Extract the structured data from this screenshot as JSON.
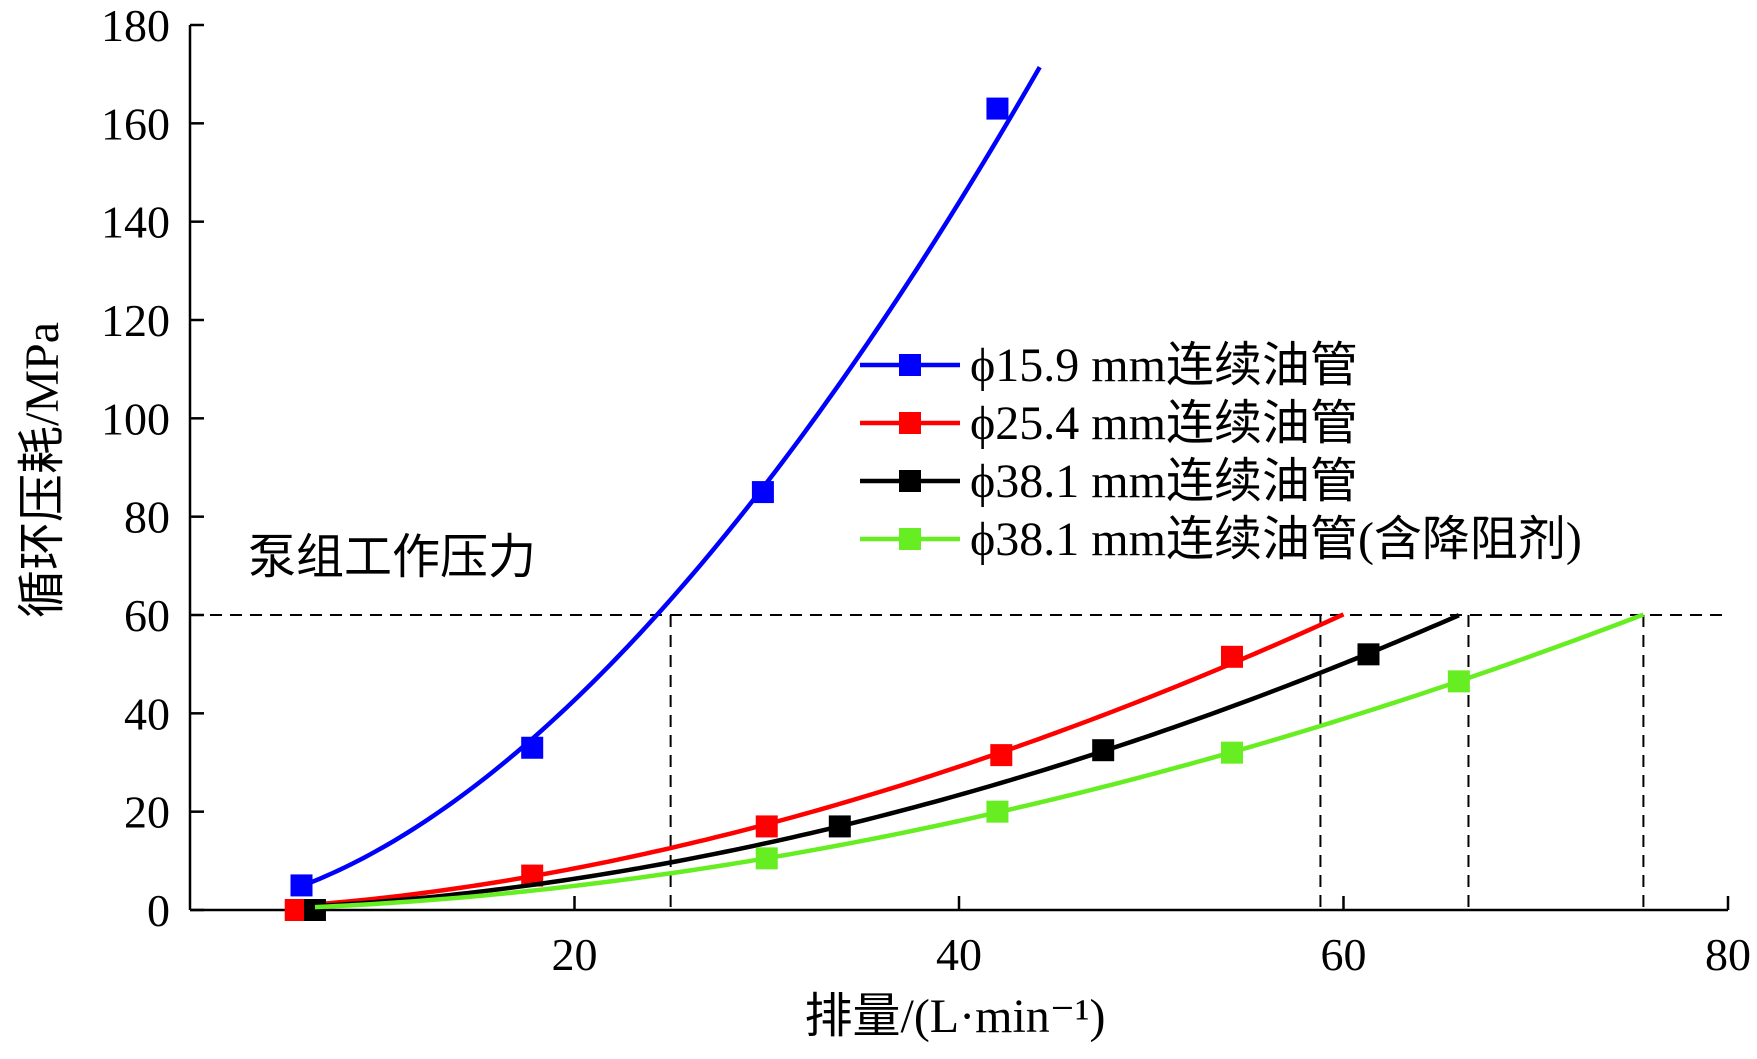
{
  "chart_data": {
    "type": "line",
    "xlabel": "排量/(L·min⁻¹)",
    "ylabel": "循环压耗/MPa",
    "xlim": [
      0,
      80
    ],
    "ylim": [
      0,
      180
    ],
    "xticks": [
      20,
      40,
      60,
      80
    ],
    "yticks": [
      0,
      20,
      40,
      60,
      80,
      100,
      120,
      140,
      160,
      180
    ],
    "grid": false,
    "legend_position": "right-center",
    "annotation": "泵组工作压力",
    "threshold": 60,
    "intersections_x": [
      25,
      58.8,
      66.5,
      75.6
    ],
    "series": [
      {
        "name": "ϕ15.9 mm连续油管",
        "color": "#0000ff",
        "markers": [
          [
            5.8,
            5
          ],
          [
            17.8,
            33
          ],
          [
            29.8,
            85
          ],
          [
            42,
            163
          ]
        ],
        "curve_x": [
          5.8,
          44.2
        ]
      },
      {
        "name": "ϕ25.4 mm连续油管",
        "color": "#ff0000",
        "markers": [
          [
            5.5,
            0
          ],
          [
            17.8,
            7
          ],
          [
            30,
            17
          ],
          [
            42.2,
            31.5
          ],
          [
            54.2,
            51.5
          ]
        ],
        "curve_x": [
          5.5,
          60
        ]
      },
      {
        "name": "ϕ38.1 mm连续油管",
        "color": "#000000",
        "markers": [
          [
            6.5,
            0
          ],
          [
            33.8,
            17
          ],
          [
            47.5,
            32.5
          ],
          [
            61.3,
            52
          ]
        ],
        "curve_x": [
          6.5,
          66
        ]
      },
      {
        "name": "ϕ38.1 mm连续油管(含降阻剂)",
        "color": "#66ee22",
        "markers": [
          [
            30,
            10.5
          ],
          [
            42,
            20
          ],
          [
            54.2,
            32
          ],
          [
            66,
            46.5
          ]
        ],
        "curve_x": [
          6.5,
          75.6
        ]
      }
    ]
  }
}
